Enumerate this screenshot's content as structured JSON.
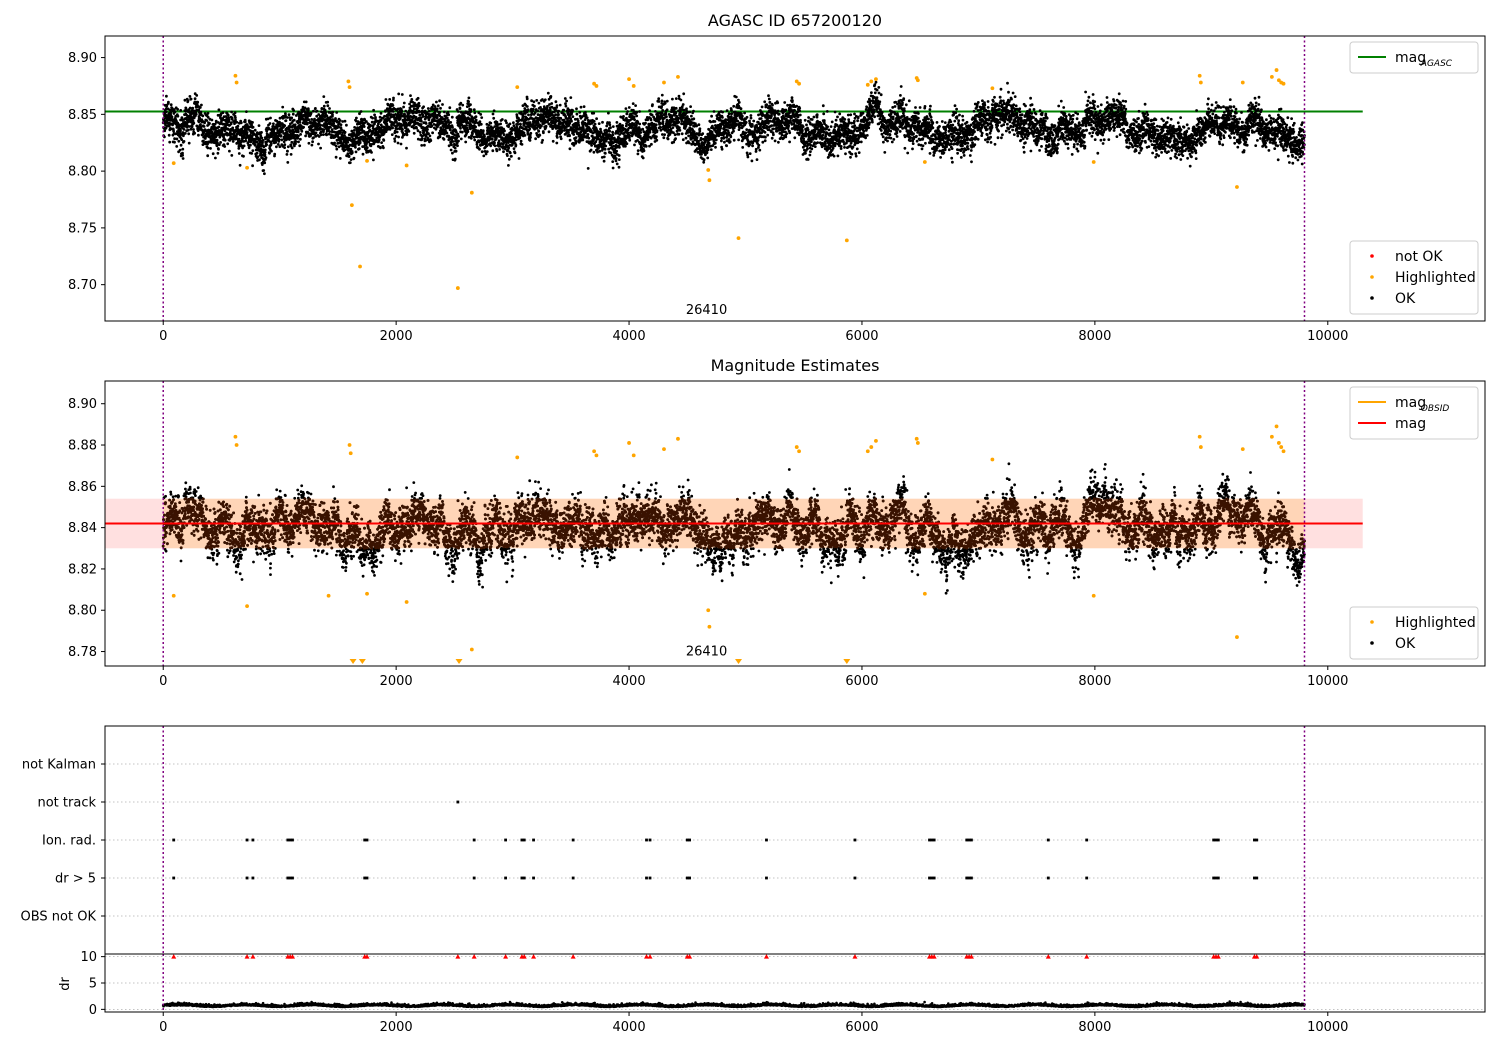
{
  "chart_data": [
    {
      "type": "scatter",
      "title": "AGASC ID 657200120",
      "xlim": [
        -500,
        11350
      ],
      "ylim": [
        8.668,
        8.919
      ],
      "x_ticks": [
        0,
        2000,
        4000,
        6000,
        8000,
        10000
      ],
      "y_ticks": [
        8.7,
        8.75,
        8.8,
        8.85,
        8.9
      ],
      "y_tick_labels": [
        "8.70",
        "8.75",
        "8.80",
        "8.85",
        "8.90"
      ],
      "obsid_annotation": {
        "text": "26410",
        "x": 4900,
        "y": 8.675
      },
      "vlines_x": [
        0,
        9800
      ],
      "reference_line": {
        "name": "mag_AGASC",
        "label_main": "mag",
        "label_sub": "AGASC",
        "y": 8.8525,
        "x_range": [
          -500,
          10300
        ],
        "color": "#008000"
      },
      "ok_series": {
        "name": "OK",
        "color": "#000000",
        "x_range": [
          0,
          9800
        ],
        "n_points": 9000,
        "base": 8.838,
        "spread": 0.014
      },
      "highlighted": {
        "name": "Highlighted",
        "color": "#ffa500",
        "points": [
          [
            90,
            8.807
          ],
          [
            620,
            8.884
          ],
          [
            630,
            8.878
          ],
          [
            720,
            8.803
          ],
          [
            1590,
            8.879
          ],
          [
            1600,
            8.874
          ],
          [
            1620,
            8.77
          ],
          [
            1690,
            8.716
          ],
          [
            1750,
            8.809
          ],
          [
            2090,
            8.805
          ],
          [
            2530,
            8.697
          ],
          [
            2650,
            8.781
          ],
          [
            3040,
            8.874
          ],
          [
            3700,
            8.877
          ],
          [
            3720,
            8.875
          ],
          [
            4000,
            8.881
          ],
          [
            4040,
            8.875
          ],
          [
            4300,
            8.878
          ],
          [
            4420,
            8.883
          ],
          [
            4680,
            8.801
          ],
          [
            4690,
            8.792
          ],
          [
            4940,
            8.741
          ],
          [
            5440,
            8.879
          ],
          [
            5460,
            8.877
          ],
          [
            5870,
            8.739
          ],
          [
            6050,
            8.876
          ],
          [
            6080,
            8.879
          ],
          [
            6120,
            8.881
          ],
          [
            6470,
            8.882
          ],
          [
            6480,
            8.88
          ],
          [
            6540,
            8.808
          ],
          [
            7120,
            8.873
          ],
          [
            7990,
            8.808
          ],
          [
            8900,
            8.884
          ],
          [
            8910,
            8.878
          ],
          [
            9220,
            8.786
          ],
          [
            9270,
            8.878
          ],
          [
            9520,
            8.883
          ],
          [
            9560,
            8.889
          ],
          [
            9580,
            8.88
          ],
          [
            9600,
            8.878
          ],
          [
            9620,
            8.877
          ]
        ]
      },
      "legends": [
        {
          "position": "upper right",
          "entries": [
            {
              "label": "mag",
              "sub": "AGASC",
              "kind": "line",
              "color": "#008000"
            }
          ]
        },
        {
          "position": "lower right",
          "entries": [
            {
              "label": "not OK",
              "kind": "dot",
              "color": "#ff0000"
            },
            {
              "label": "Highlighted",
              "kind": "dot",
              "color": "#ffa500"
            },
            {
              "label": "OK",
              "kind": "dot",
              "color": "#000000"
            }
          ]
        }
      ]
    },
    {
      "type": "scatter",
      "title": "Magnitude Estimates",
      "xlim": [
        -500,
        11350
      ],
      "ylim": [
        8.773,
        8.911
      ],
      "x_ticks": [
        0,
        2000,
        4000,
        6000,
        8000,
        10000
      ],
      "y_ticks": [
        8.78,
        8.8,
        8.82,
        8.84,
        8.86,
        8.88,
        8.9
      ],
      "y_tick_labels": [
        "8.78",
        "8.80",
        "8.82",
        "8.84",
        "8.86",
        "8.88",
        "8.90"
      ],
      "obsid_annotation": {
        "text": "26410",
        "x": 4900,
        "y": 8.778
      },
      "vlines_x": [
        0,
        9800
      ],
      "mag_line": {
        "name": "mag",
        "y": 8.842,
        "x_range": [
          -500,
          10300
        ],
        "color": "#ff0000"
      },
      "mag_band": {
        "y_range": [
          8.83,
          8.854
        ],
        "x_range": [
          -500,
          10300
        ],
        "color": "#ff0000",
        "opacity": 0.12
      },
      "obsid_band": {
        "y_range": [
          8.83,
          8.854
        ],
        "x_range": [
          0,
          9800
        ],
        "color": "#ffa500",
        "opacity": 0.18
      },
      "obsid_line": {
        "name": "mag_OBSID",
        "y": 8.842,
        "x_range": [
          0,
          9800
        ],
        "color": "#ffa500"
      },
      "ok_series": {
        "name": "OK",
        "color": "#000000",
        "x_range": [
          0,
          9800
        ],
        "n_points": 9000,
        "base": 8.84,
        "spread": 0.01
      },
      "highlighted": {
        "name": "Highlighted",
        "color": "#ffa500",
        "points": [
          [
            90,
            8.807
          ],
          [
            620,
            8.884
          ],
          [
            630,
            8.88
          ],
          [
            720,
            8.802
          ],
          [
            1420,
            8.807
          ],
          [
            1600,
            8.88
          ],
          [
            1610,
            8.876
          ],
          [
            1750,
            8.808
          ],
          [
            2090,
            8.804
          ],
          [
            2650,
            8.781
          ],
          [
            3040,
            8.874
          ],
          [
            3700,
            8.877
          ],
          [
            3720,
            8.875
          ],
          [
            4000,
            8.881
          ],
          [
            4040,
            8.875
          ],
          [
            4300,
            8.878
          ],
          [
            4420,
            8.883
          ],
          [
            4680,
            8.8
          ],
          [
            4690,
            8.792
          ],
          [
            5440,
            8.879
          ],
          [
            5460,
            8.877
          ],
          [
            6050,
            8.877
          ],
          [
            6080,
            8.879
          ],
          [
            6120,
            8.882
          ],
          [
            6470,
            8.883
          ],
          [
            6480,
            8.881
          ],
          [
            6540,
            8.808
          ],
          [
            7120,
            8.873
          ],
          [
            7990,
            8.807
          ],
          [
            8900,
            8.884
          ],
          [
            8910,
            8.879
          ],
          [
            9220,
            8.787
          ],
          [
            9270,
            8.878
          ],
          [
            9520,
            8.884
          ],
          [
            9560,
            8.889
          ],
          [
            9580,
            8.881
          ],
          [
            9600,
            8.879
          ],
          [
            9620,
            8.877
          ]
        ]
      },
      "out_of_range_markers_x": [
        1630,
        1710,
        2540,
        4940,
        5870
      ],
      "legends": [
        {
          "position": "upper right",
          "entries": [
            {
              "label": "mag",
              "sub": "OBSID",
              "kind": "line",
              "color": "#ffa500"
            },
            {
              "label": "mag",
              "kind": "line",
              "color": "#ff0000"
            }
          ]
        },
        {
          "position": "lower right",
          "entries": [
            {
              "label": "Highlighted",
              "kind": "dot",
              "color": "#ffa500"
            },
            {
              "label": "OK",
              "kind": "dot",
              "color": "#000000"
            }
          ]
        }
      ]
    },
    {
      "type": "scatter",
      "title": "",
      "xlim": [
        -500,
        11350
      ],
      "categories": [
        "not Kalman",
        "not track",
        "Ion. rad.",
        "dr > 5",
        "OBS not OK"
      ],
      "vlines_x": [
        0,
        9800
      ],
      "flag_points": {
        "not track": [
          2530
        ],
        "Ion. rad.": [
          90,
          720,
          770,
          1070,
          1090,
          1110,
          1730,
          1750,
          2670,
          2940,
          3080,
          3100,
          3180,
          3520,
          4150,
          4180,
          4500,
          4520,
          5180,
          5940,
          6580,
          6600,
          6620,
          6900,
          6920,
          6940,
          7600,
          7930,
          9020,
          9040,
          9060,
          9370,
          9390
        ],
        "dr > 5": [
          90,
          720,
          770,
          1070,
          1090,
          1110,
          1730,
          1750,
          2670,
          2940,
          3080,
          3100,
          3180,
          3520,
          4150,
          4180,
          4500,
          4520,
          5180,
          5940,
          6580,
          6600,
          6620,
          6900,
          6920,
          6940,
          7600,
          7930,
          9020,
          9040,
          9060,
          9370,
          9390
        ]
      }
    },
    {
      "type": "scatter",
      "title": "",
      "ylabel": "dr",
      "xlim": [
        -500,
        11350
      ],
      "ylim": [
        -0.5,
        10.5
      ],
      "x_ticks": [
        0,
        2000,
        4000,
        6000,
        8000,
        10000
      ],
      "y_ticks": [
        0,
        5,
        10
      ],
      "vlines_x": [
        0,
        9800
      ],
      "dr_series": {
        "color": "#000000",
        "x_range": [
          0,
          9800
        ],
        "n_points": 4000,
        "base": 0.6,
        "spread": 0.35
      },
      "clipped_markers": {
        "color": "#ff0000",
        "y": 10,
        "x": [
          90,
          720,
          770,
          1070,
          1090,
          1110,
          1730,
          1750,
          2530,
          2670,
          2940,
          3080,
          3100,
          3180,
          3520,
          4150,
          4180,
          4500,
          4520,
          5180,
          5940,
          6580,
          6600,
          6620,
          6900,
          6920,
          6940,
          7600,
          7930,
          9020,
          9040,
          9060,
          9370,
          9390
        ]
      }
    }
  ]
}
